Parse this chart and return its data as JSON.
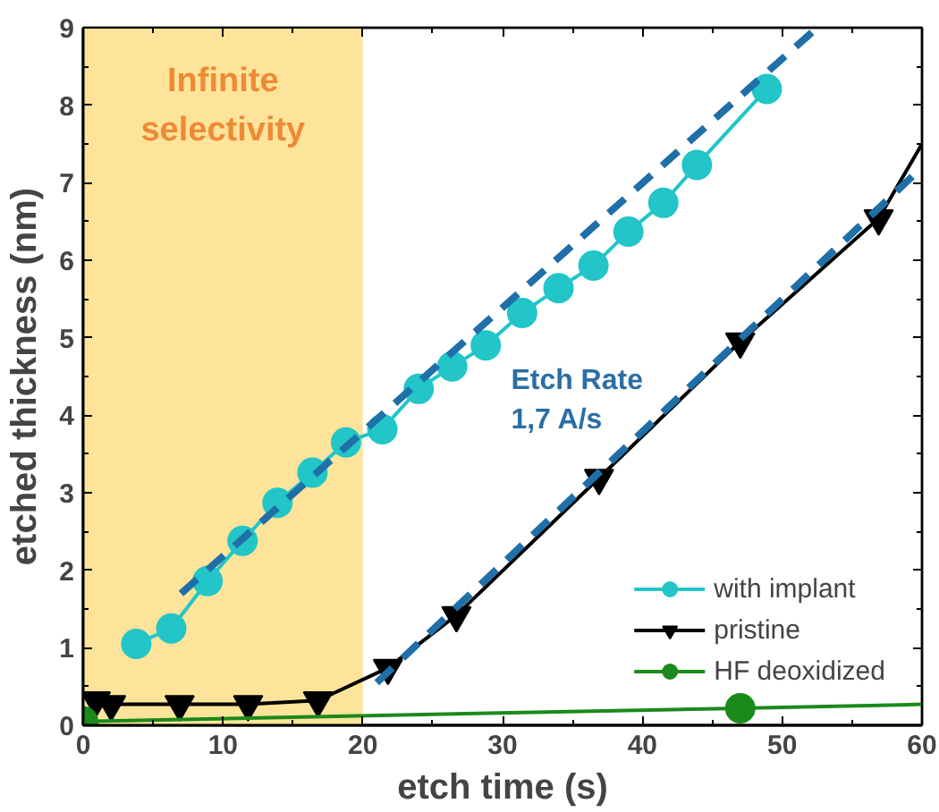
{
  "chart_data": {
    "type": "line",
    "xlabel": "etch time (s)",
    "ylabel": "etched thickness (nm)",
    "xlim": [
      0,
      60
    ],
    "ylim": [
      0,
      9
    ],
    "xticks": [
      0,
      10,
      20,
      30,
      40,
      50,
      60
    ],
    "yticks": [
      0,
      1,
      2,
      3,
      4,
      5,
      6,
      7,
      8,
      9
    ],
    "grid": false,
    "legend": "bottom right",
    "series": [
      {
        "name": "with implant",
        "color": "#22c5c8",
        "marker": "circle",
        "x": [
          3.8,
          6.3,
          8.9,
          11.4,
          13.9,
          16.4,
          18.8,
          21.4,
          24.0,
          26.4,
          28.8,
          31.4,
          34.0,
          36.5,
          39.0,
          41.5,
          43.9,
          48.9
        ],
        "values": [
          1.05,
          1.25,
          1.86,
          2.38,
          2.87,
          3.26,
          3.65,
          3.82,
          4.34,
          4.63,
          4.9,
          5.32,
          5.64,
          5.93,
          6.37,
          6.74,
          7.23,
          8.21
        ]
      },
      {
        "name": "pristine",
        "color": "#000000",
        "marker": "triangle",
        "x": [
          0.9,
          2.0,
          6.9,
          11.8,
          16.8,
          21.8,
          26.7,
          36.9,
          47.0,
          56.9
        ],
        "values": [
          0.32,
          0.27,
          0.27,
          0.27,
          0.32,
          0.74,
          1.42,
          3.19,
          4.95,
          6.54
        ]
      },
      {
        "name": "HF deoxidized",
        "color": "#1a8a1a",
        "marker": "circle",
        "x": [
          0,
          47
        ],
        "values": [
          0.05,
          0.22
        ]
      },
      {
        "color": "#000000",
        "marker": "none",
        "x": [
          56.9,
          60
        ],
        "values": [
          6.54,
          7.5
        ]
      },
      {
        "color": "#1a8a1a",
        "marker": "none",
        "x": [
          47,
          60
        ],
        "values": [
          0.22,
          0.27
        ]
      },
      {
        "color": "#1f6fa8",
        "marker": "none",
        "line_style": "dashed",
        "x": [
          7,
          52.5
        ],
        "values": [
          1.7,
          9
        ]
      },
      {
        "color": "#1f6fa8",
        "marker": "none",
        "line_style": "dashed",
        "x": [
          21,
          60
        ],
        "values": [
          0.55,
          7.2
        ]
      }
    ],
    "bands": [
      {
        "axis": "x",
        "from": 0,
        "to": 20,
        "label": "Infinite selectivity",
        "color": "#fde49a"
      }
    ],
    "annotations": [
      "Etch Rate\n1,7 A/s"
    ]
  }
}
